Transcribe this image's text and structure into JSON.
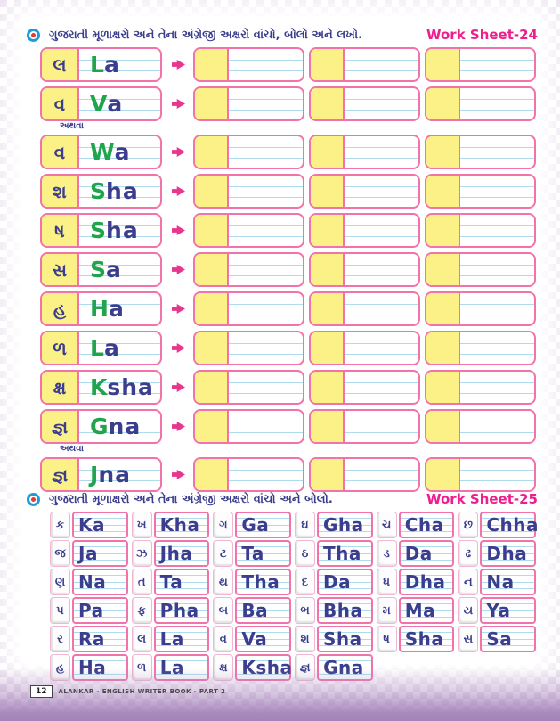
{
  "icons": {
    "bullet": "target-dot-icon",
    "arrow": "right-arrow-icon"
  },
  "colors": {
    "accent_pink_border": "#f272aa",
    "highlight_yellow": "#fcf187",
    "capital_green": "#21a44e",
    "letter_indigo": "#3b3e8e",
    "worksheet_label_magenta": "#ee1e8e",
    "ruled_line_blue": "#aedcee",
    "checker_lavender": "#e8dcec",
    "bottom_purple": "#a98abd"
  },
  "section1": {
    "instruction": "ગુજરાતી મૂળાક્ષરો અને તેના અંગ્રેજી અક્ષરો વાંચો, બોલો અને લખો.",
    "worksheet_label": "Work Sheet-24",
    "or_label": "અથવા",
    "practice_boxes_per_row": 3,
    "rows": [
      {
        "guj": "લ",
        "eng": "La"
      },
      {
        "guj": "વ",
        "eng": "Va"
      },
      {
        "guj": "વ",
        "eng": "Wa",
        "or": true
      },
      {
        "guj": "શ",
        "eng": "Sha"
      },
      {
        "guj": "ષ",
        "eng": "Sha"
      },
      {
        "guj": "સ",
        "eng": "Sa"
      },
      {
        "guj": "હ",
        "eng": "Ha"
      },
      {
        "guj": "ળ",
        "eng": "La"
      },
      {
        "guj": "ક્ષ",
        "eng": "Ksha"
      },
      {
        "guj": "જ્ઞ",
        "eng": "Gna"
      },
      {
        "guj": "જ્ઞ",
        "eng": "Jna",
        "or": true
      }
    ]
  },
  "section2": {
    "instruction": "ગુજરાતી મૂળાક્ષરો અને તેના અંગ્રેજી અક્ષરો વાંચો અને બોલો.",
    "worksheet_label": "Work Sheet-25",
    "rows": [
      [
        {
          "guj": "ક",
          "eng": "Ka"
        },
        {
          "guj": "ખ",
          "eng": "Kha"
        },
        {
          "guj": "ગ",
          "eng": "Ga"
        },
        {
          "guj": "ઘ",
          "eng": "Gha"
        },
        {
          "guj": "ચ",
          "eng": "Cha"
        },
        {
          "guj": "છ",
          "eng": "Chha"
        }
      ],
      [
        {
          "guj": "જ",
          "eng": "Ja"
        },
        {
          "guj": "ઝ",
          "eng": "Jha"
        },
        {
          "guj": "ટ",
          "eng": "Ta"
        },
        {
          "guj": "ઠ",
          "eng": "Tha"
        },
        {
          "guj": "ડ",
          "eng": "Da"
        },
        {
          "guj": "ઢ",
          "eng": "Dha"
        }
      ],
      [
        {
          "guj": "ણ",
          "eng": "Na"
        },
        {
          "guj": "ત",
          "eng": "Ta"
        },
        {
          "guj": "થ",
          "eng": "Tha"
        },
        {
          "guj": "દ",
          "eng": "Da"
        },
        {
          "guj": "ધ",
          "eng": "Dha"
        },
        {
          "guj": "ન",
          "eng": "Na"
        }
      ],
      [
        {
          "guj": "પ",
          "eng": "Pa"
        },
        {
          "guj": "ફ",
          "eng": "Pha"
        },
        {
          "guj": "બ",
          "eng": "Ba"
        },
        {
          "guj": "ભ",
          "eng": "Bha"
        },
        {
          "guj": "મ",
          "eng": "Ma"
        },
        {
          "guj": "ય",
          "eng": "Ya"
        }
      ],
      [
        {
          "guj": "ર",
          "eng": "Ra"
        },
        {
          "guj": "લ",
          "eng": "La"
        },
        {
          "guj": "વ",
          "eng": "Va"
        },
        {
          "guj": "શ",
          "eng": "Sha"
        },
        {
          "guj": "ષ",
          "eng": "Sha"
        },
        {
          "guj": "સ",
          "eng": "Sa"
        }
      ],
      [
        {
          "guj": "હ",
          "eng": "Ha"
        },
        {
          "guj": "ળ",
          "eng": "La"
        },
        {
          "guj": "ક્ષ",
          "eng": "Ksha"
        },
        {
          "guj": "જ્ઞ",
          "eng": "Gna"
        }
      ]
    ]
  },
  "footer": {
    "page_number": "12",
    "book_title": "ALANKAR - ENGLISH WRITER BOOK - PART 2"
  }
}
